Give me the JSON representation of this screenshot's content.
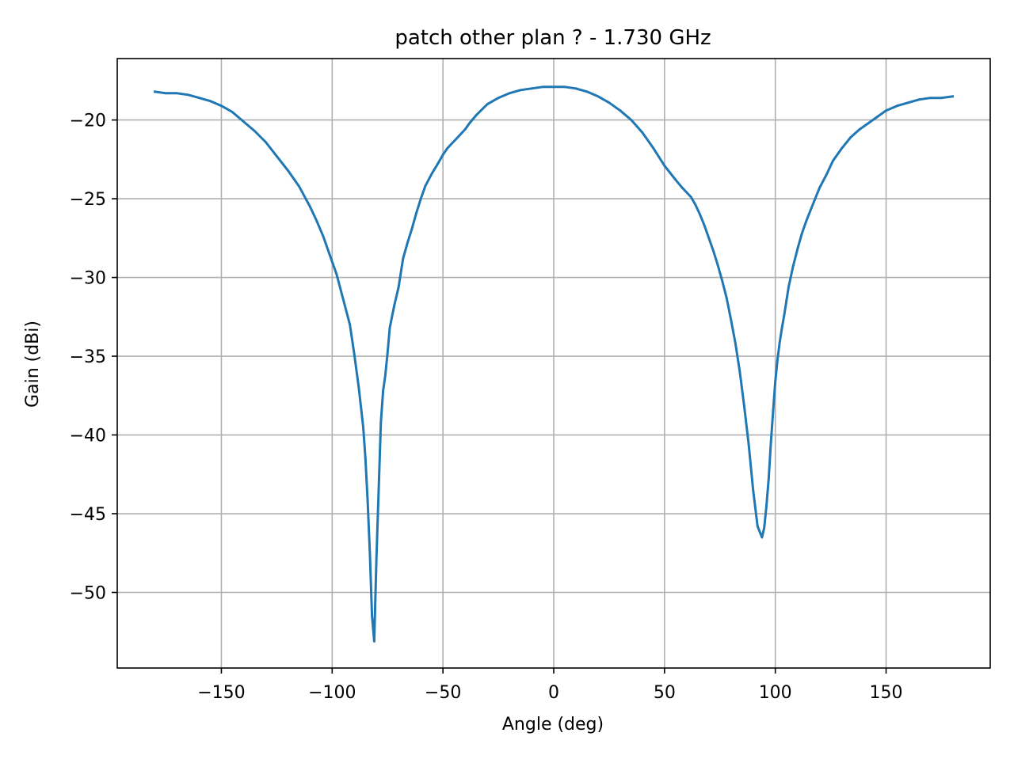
{
  "chart_data": {
    "type": "line",
    "title": "patch other plan ? - 1.730 GHz",
    "xlabel": "Angle (deg)",
    "ylabel": "Gain (dBi)",
    "xlim": [
      -197,
      197
    ],
    "ylim": [
      -54.8,
      -16.1
    ],
    "xticks": [
      -150,
      -100,
      -50,
      0,
      50,
      100,
      150
    ],
    "yticks": [
      -50,
      -45,
      -40,
      -35,
      -30,
      -25,
      -20
    ],
    "xtick_labels": [
      "−150",
      "−100",
      "−50",
      "0",
      "50",
      "100",
      "150"
    ],
    "ytick_labels": [
      "−50",
      "−45",
      "−40",
      "−35",
      "−30",
      "−25",
      "−20"
    ],
    "grid": true,
    "legend": "none",
    "colors": {
      "series": "#1f77b4"
    },
    "series": [
      {
        "x": [
          -180,
          -175,
          -170,
          -165,
          -160,
          -155,
          -150,
          -145,
          -140,
          -135,
          -130,
          -125,
          -120,
          -115,
          -110,
          -107,
          -104,
          -101,
          -98,
          -95,
          -92,
          -90,
          -88,
          -86,
          -85,
          -84,
          -83,
          -82,
          -81,
          -80,
          -79,
          -78,
          -77,
          -76,
          -75,
          -74,
          -72,
          -70,
          -68,
          -66,
          -64,
          -62,
          -60,
          -58,
          -55,
          -52,
          -50,
          -48,
          -46,
          -44,
          -42,
          -40,
          -38,
          -35,
          -30,
          -25,
          -20,
          -15,
          -10,
          -5,
          0,
          5,
          10,
          15,
          20,
          25,
          30,
          35,
          40,
          45,
          50,
          55,
          58,
          60,
          62,
          64,
          66,
          68,
          70,
          72,
          74,
          76,
          78,
          80,
          82,
          84,
          86,
          88,
          90,
          92,
          94,
          95,
          96,
          97,
          98,
          99,
          100,
          101,
          102,
          103,
          104,
          105,
          106,
          108,
          110,
          112,
          114,
          116,
          118,
          120,
          123,
          126,
          130,
          134,
          138,
          142,
          146,
          150,
          155,
          160,
          165,
          170,
          175,
          180
        ],
        "y": [
          -18.2,
          -18.3,
          -18.3,
          -18.4,
          -18.6,
          -18.8,
          -19.1,
          -19.5,
          -20.1,
          -20.7,
          -21.4,
          -22.3,
          -23.2,
          -24.2,
          -25.5,
          -26.4,
          -27.4,
          -28.6,
          -29.8,
          -31.4,
          -33.0,
          -34.9,
          -37.0,
          -39.5,
          -41.5,
          -44.2,
          -47.5,
          -51.5,
          -53.1,
          -47.8,
          -43.5,
          -39.2,
          -37.2,
          -36.2,
          -34.8,
          -33.2,
          -31.8,
          -30.6,
          -28.8,
          -27.8,
          -26.9,
          -25.9,
          -25.0,
          -24.2,
          -23.4,
          -22.7,
          -22.2,
          -21.8,
          -21.5,
          -21.2,
          -20.9,
          -20.6,
          -20.2,
          -19.7,
          -19.0,
          -18.6,
          -18.3,
          -18.1,
          -18.0,
          -17.9,
          -17.9,
          -17.9,
          -18.0,
          -18.2,
          -18.5,
          -18.9,
          -19.4,
          -20.0,
          -20.8,
          -21.8,
          -22.9,
          -23.8,
          -24.3,
          -24.6,
          -24.9,
          -25.4,
          -26.0,
          -26.7,
          -27.5,
          -28.3,
          -29.2,
          -30.2,
          -31.3,
          -32.7,
          -34.2,
          -36.0,
          -38.2,
          -40.6,
          -43.5,
          -45.8,
          -46.5,
          -45.9,
          -44.5,
          -42.8,
          -40.5,
          -38.5,
          -36.6,
          -35.2,
          -34.1,
          -33.2,
          -32.4,
          -31.5,
          -30.6,
          -29.3,
          -28.2,
          -27.2,
          -26.4,
          -25.7,
          -25.0,
          -24.3,
          -23.5,
          -22.6,
          -21.8,
          -21.1,
          -20.6,
          -20.2,
          -19.8,
          -19.4,
          -19.1,
          -18.9,
          -18.7,
          -18.6,
          -18.6,
          -18.5
        ]
      }
    ]
  }
}
